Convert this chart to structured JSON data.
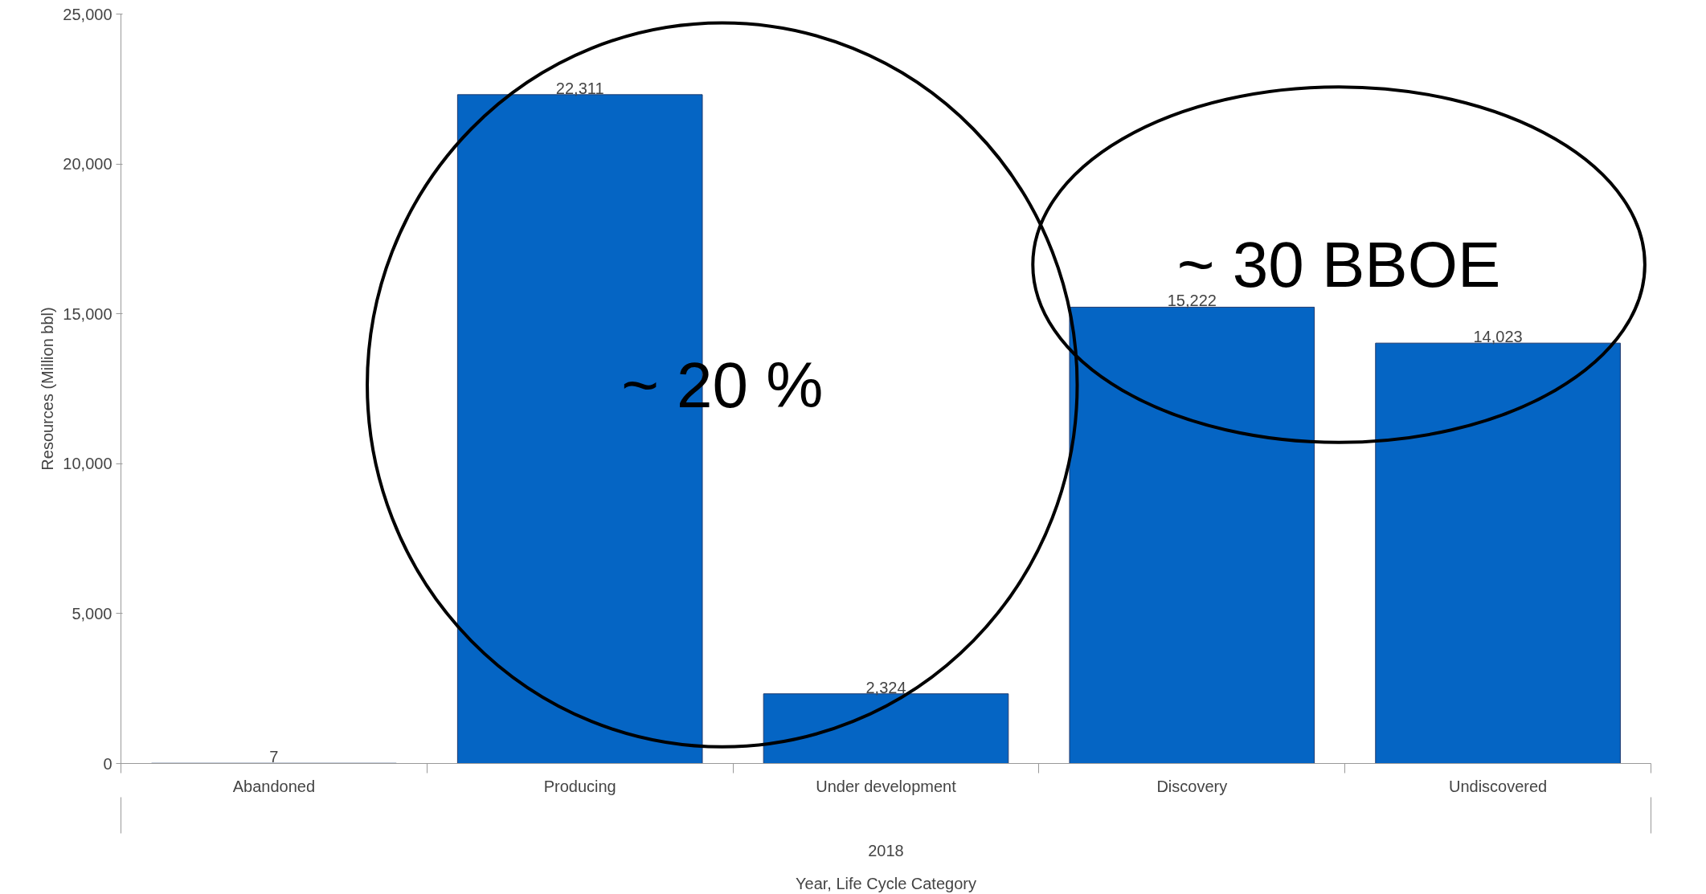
{
  "chart_data": {
    "type": "bar",
    "categories": [
      "Abandoned",
      "Producing",
      "Under development",
      "Discovery",
      "Undiscovered"
    ],
    "values": [
      7,
      22311,
      2324,
      15222,
      14023
    ],
    "value_labels": [
      "7",
      "22,311",
      "2,324",
      "15,222",
      "14,023"
    ],
    "color": "#0565c4",
    "ylim": [
      0,
      25000
    ],
    "yticks": [
      {
        "value": 0,
        "label": "0"
      },
      {
        "value": 5000,
        "label": "5,000"
      },
      {
        "value": 10000,
        "label": "10,000"
      },
      {
        "value": 15000,
        "label": "15,000"
      },
      {
        "value": 20000,
        "label": "20,000"
      },
      {
        "value": 25000,
        "label": "25,000"
      }
    ],
    "ylabel": "Resources (Million bbl)",
    "xlabel": "Year, Life Cycle Category",
    "annotations": [
      "2018",
      "~ 20 %",
      "~ 30 BBOE"
    ],
    "grid": false
  }
}
